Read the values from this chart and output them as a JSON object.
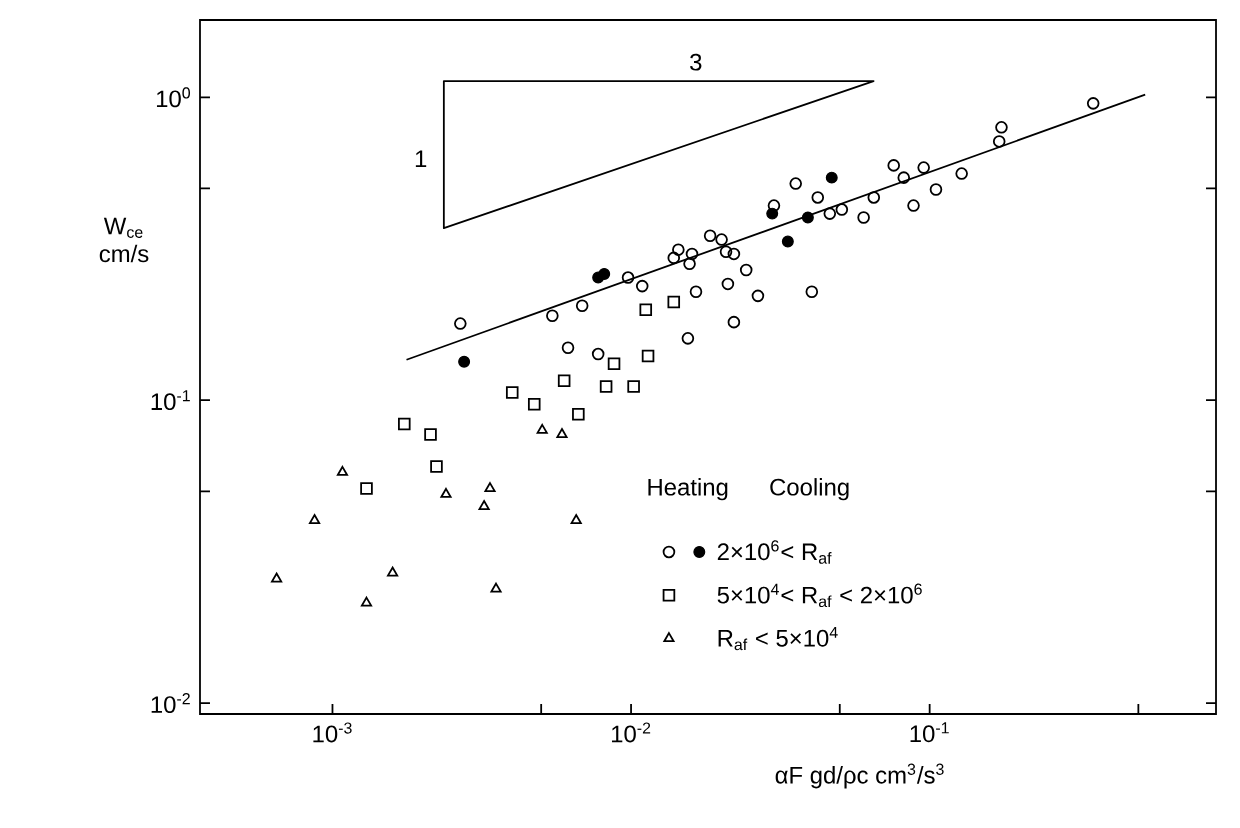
{
  "chart_data": {
    "type": "scatter",
    "log": "xy",
    "xlabel": "αF gd/ρc   cm$^{3}$/s$^{3}$",
    "ylabel": "W$_{ce}$ cm/s",
    "xlim": [
      0.00036,
      0.91
    ],
    "ylim": [
      0.0092,
      1.8
    ],
    "xticks": [
      {
        "value": 0.001,
        "label": "10$^{-3}$"
      },
      {
        "value": 0.005,
        "label": null
      },
      {
        "value": 0.01,
        "label": "10$^{-2}$"
      },
      {
        "value": 0.05,
        "label": null
      },
      {
        "value": 0.1,
        "label": "10$^{-1}$"
      },
      {
        "value": 0.5,
        "label": null
      }
    ],
    "yticks": [
      {
        "value": 0.01,
        "label": "10$^{-2}$"
      },
      {
        "value": 0.05,
        "label": null
      },
      {
        "value": 0.1,
        "label": "10$^{-1}$"
      },
      {
        "value": 0.5,
        "label": null
      },
      {
        "value": 1,
        "label": "10$^{0}$"
      }
    ],
    "legend": "bottom right",
    "annotations": [
      "Heating",
      "Cooling",
      "3",
      "1"
    ],
    "series": [
      {
        "type": "scatter",
        "marker": "circle",
        "color": "#000000",
        "x": [
          0.00268,
          0.00545,
          0.00686,
          0.00615,
          0.00776,
          0.00977,
          0.0109,
          0.0144,
          0.016,
          0.0184,
          0.0165,
          0.0155,
          0.0139,
          0.0157,
          0.0201,
          0.0208,
          0.0221,
          0.0243,
          0.0211,
          0.0221,
          0.0266,
          0.0403,
          0.0356,
          0.0301,
          0.0422,
          0.0463,
          0.0508,
          0.0601,
          0.065,
          0.0758,
          0.0819,
          0.0955,
          0.0883,
          0.105,
          0.128,
          0.171,
          0.174,
          0.353
        ],
        "values": [
          0.179,
          0.19,
          0.205,
          0.149,
          0.142,
          0.254,
          0.238,
          0.314,
          0.304,
          0.349,
          0.228,
          0.16,
          0.295,
          0.282,
          0.339,
          0.309,
          0.304,
          0.269,
          0.242,
          0.181,
          0.221,
          0.228,
          0.519,
          0.439,
          0.467,
          0.413,
          0.426,
          0.401,
          0.467,
          0.596,
          0.543,
          0.586,
          0.439,
          0.496,
          0.56,
          0.715,
          0.796,
          0.955
        ]
      },
      {
        "name": "2×10$^{6}$< R$_{af}$",
        "type": "scatter",
        "marker": "filled circle",
        "color": "#000000",
        "x": [
          0.00276,
          0.00813,
          0.00776,
          0.0297,
          0.0391,
          0.0335,
          0.047
        ],
        "values": [
          0.134,
          0.261,
          0.254,
          0.413,
          0.401,
          0.334,
          0.543
        ]
      },
      {
        "name": "5×10$^{4}$< R$_{af}$ < 2×10$^{6}$",
        "type": "scatter",
        "marker": "square",
        "color": "#000000",
        "x": [
          0.0112,
          0.0139,
          0.0114,
          0.00877,
          0.00597,
          0.00825,
          0.0102,
          0.004,
          0.00474,
          0.00666,
          0.00174,
          0.00213,
          0.00223,
          0.0013
        ],
        "values": [
          0.199,
          0.211,
          0.14,
          0.132,
          0.116,
          0.111,
          0.111,
          0.106,
          0.097,
          0.0899,
          0.0834,
          0.0771,
          0.0604,
          0.0511
        ]
      },
      {
        "name": "R$_{af}$ < 5×10$^{4}$",
        "type": "scatter",
        "marker": "triangle",
        "color": "#000000",
        "x": [
          0.00504,
          0.00587,
          0.00108,
          0.0024,
          0.00337,
          0.00322,
          0.000871,
          0.00655,
          0.00159,
          0.00065,
          0.0013,
          0.00353
        ],
        "values": [
          0.0796,
          0.0771,
          0.0578,
          0.0489,
          0.0511,
          0.0446,
          0.0401,
          0.0401,
          0.0269,
          0.0257,
          0.0214,
          0.0238
        ]
      },
      {
        "type": "line",
        "marker": "none",
        "color": "#000000",
        "x": [
          0.00177,
          0.527
        ],
        "values": [
          0.136,
          1.02
        ]
      }
    ]
  }
}
